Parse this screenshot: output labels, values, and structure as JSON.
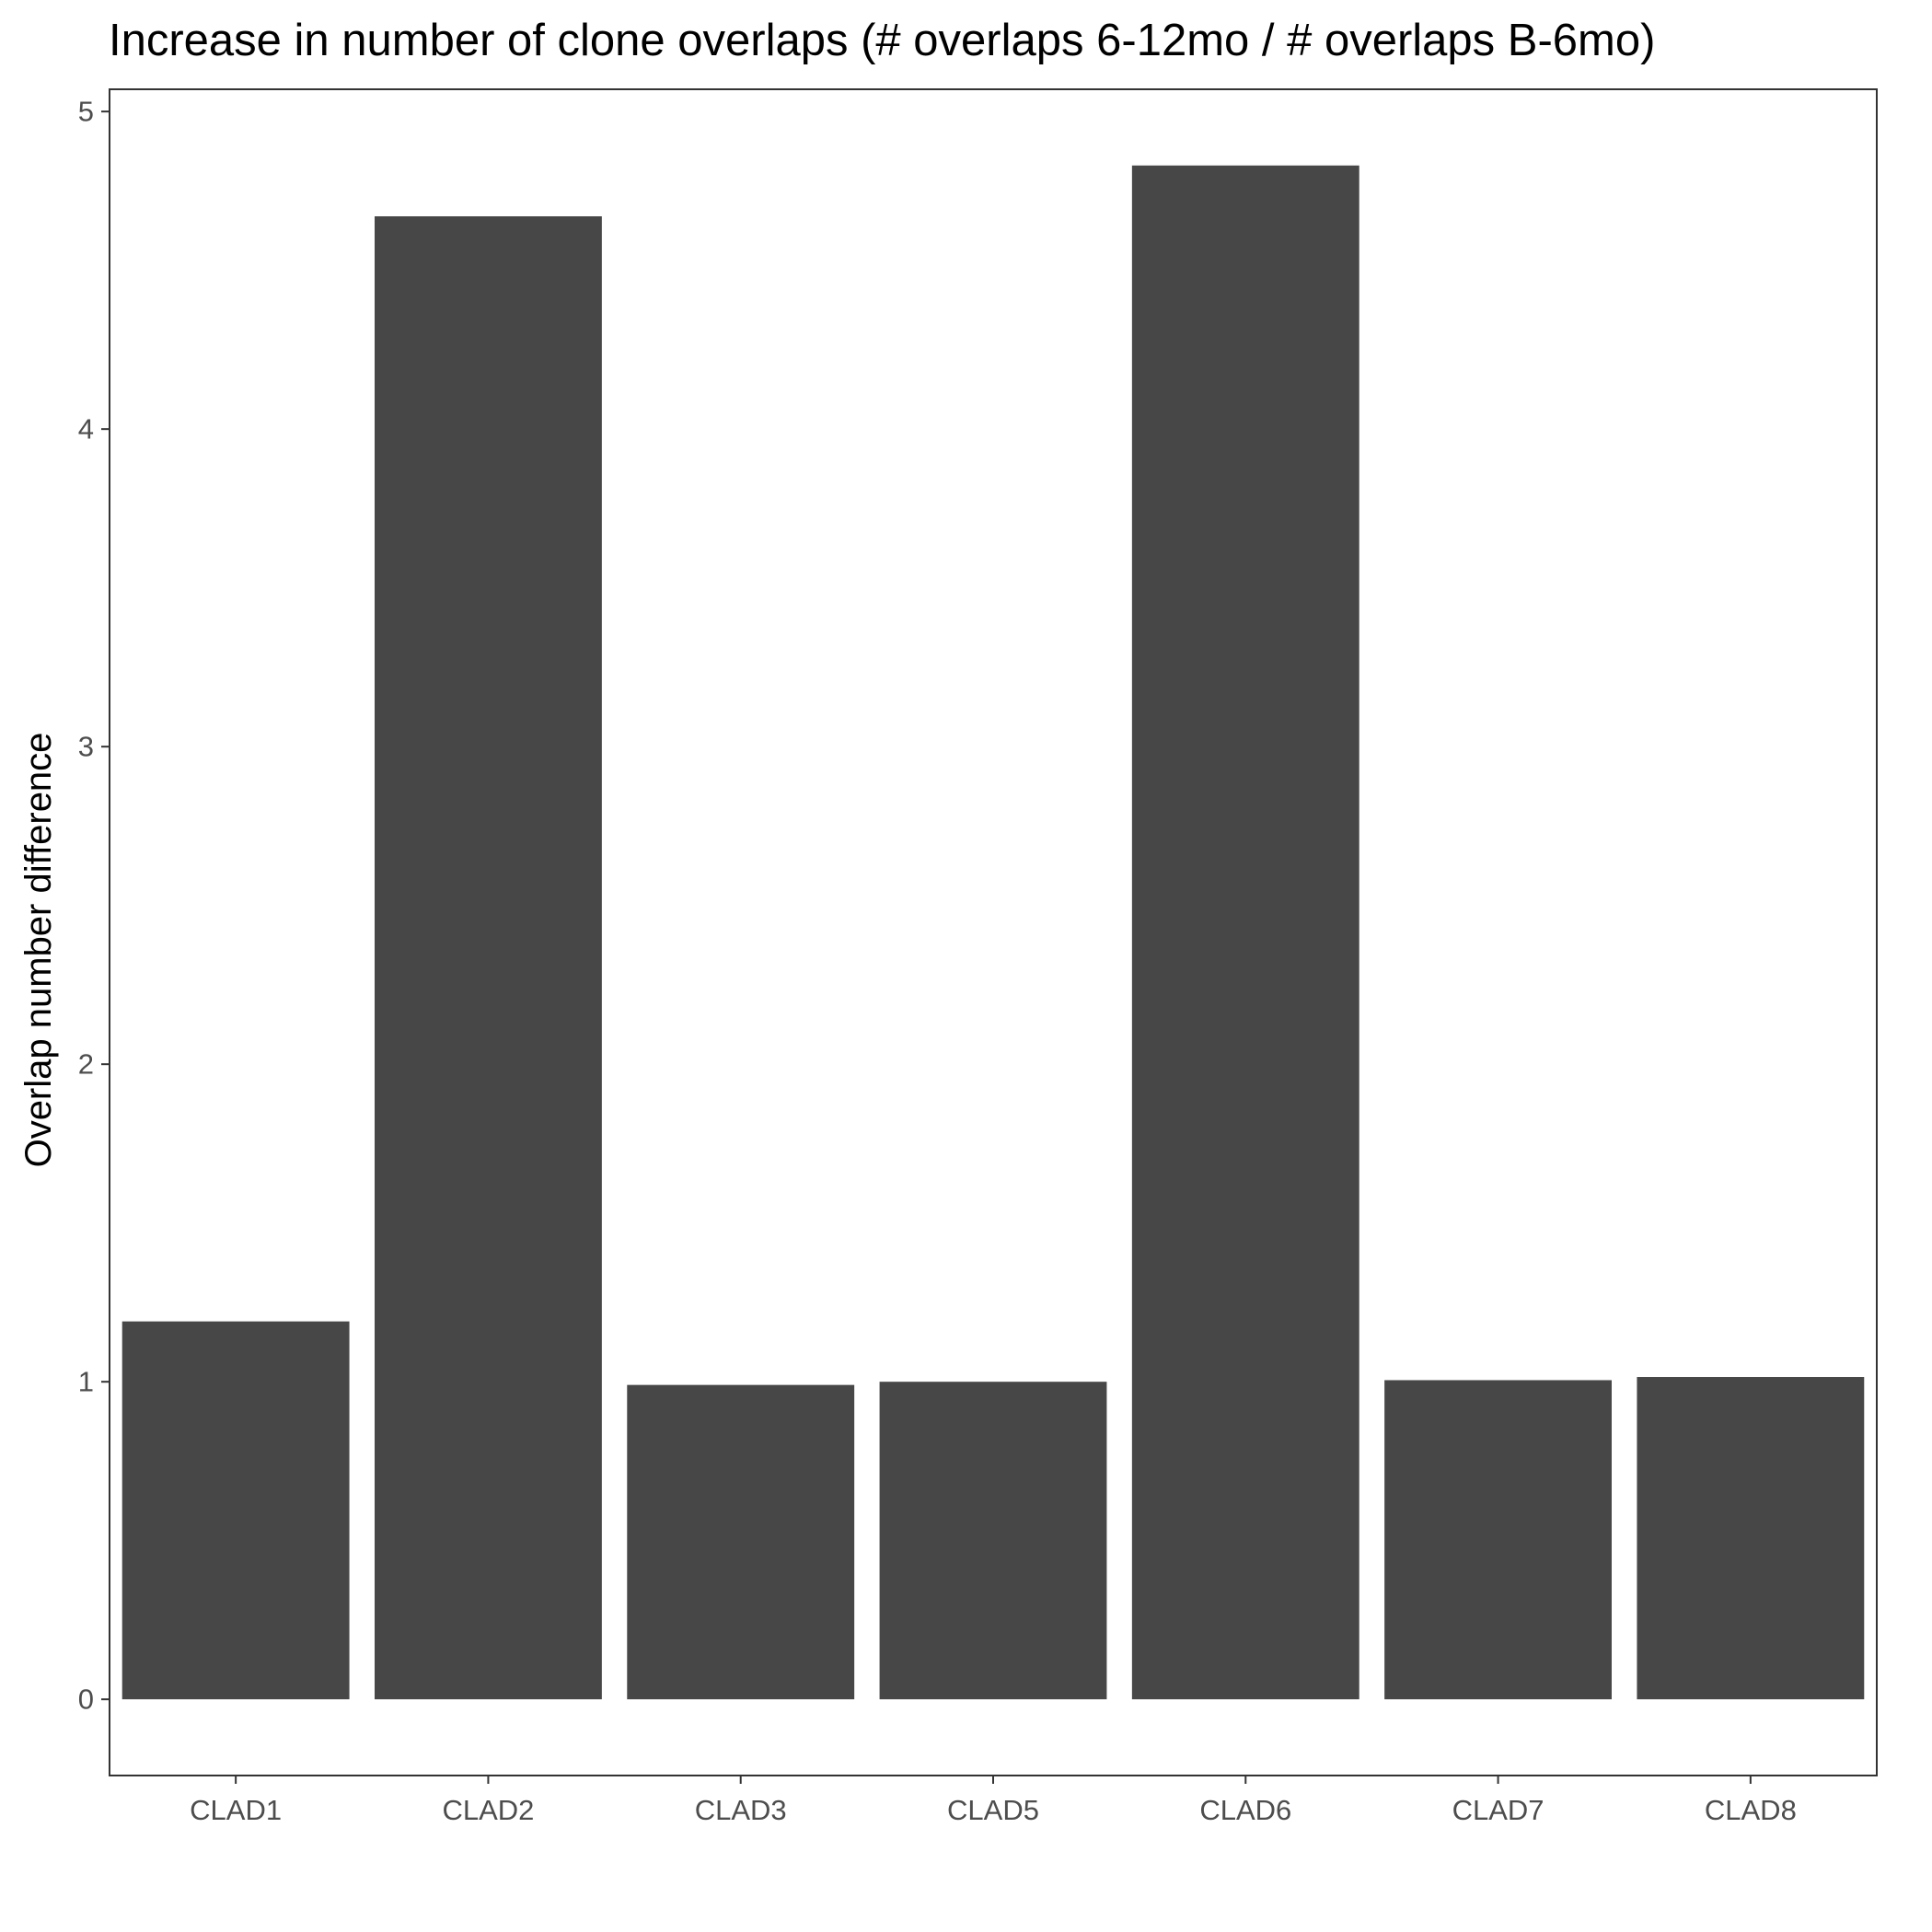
{
  "chart_data": {
    "type": "bar",
    "title": "Increase in number of clone overlaps (# overlaps 6-12mo / # overlaps B-6mo)",
    "xlabel": "",
    "ylabel": "Overlap number difference",
    "categories": [
      "CLAD1",
      "CLAD2",
      "CLAD3",
      "CLAD5",
      "CLAD6",
      "CLAD7",
      "CLAD8"
    ],
    "values": [
      1.19,
      4.67,
      0.99,
      1.0,
      4.83,
      1.005,
      1.015
    ],
    "ylim": [
      -0.24,
      5.07
    ],
    "yticks": [
      0,
      1,
      2,
      3,
      4,
      5
    ],
    "grid": false,
    "legend": "none",
    "colors": {
      "bar": "#474747",
      "panel_border": "#333333",
      "tick_text": "#4d4d4d",
      "title_text": "#000000",
      "background": "#ffffff"
    }
  }
}
